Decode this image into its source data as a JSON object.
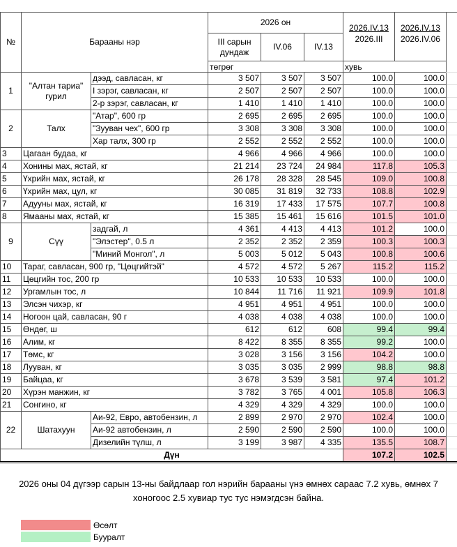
{
  "header": {
    "no": "№",
    "name": "Барааны нэр",
    "year": "2026 он",
    "col_iii": "III сарын дундаж",
    "col_iv06": "IV.06",
    "col_iv13": "IV.13",
    "pct1_top": "2026.IV.13",
    "pct1_bottom": "2026.III",
    "pct2_top": "2026.IV.13",
    "pct2_bottom": "2026.IV.06",
    "unit_price": "төгрөг",
    "unit_pct": "хувь"
  },
  "groups": [
    {
      "no": "1",
      "name": "\"Алтан тариа\" гурил",
      "items": [
        {
          "name": "дээд, савласан, кг",
          "values": [
            "3 507",
            "3 507",
            "3 507"
          ],
          "pct": [
            "100.0",
            "100.0"
          ]
        },
        {
          "name": "I зэрэг, савласан, кг",
          "values": [
            "2 507",
            "2 507",
            "2 507"
          ],
          "pct": [
            "100.0",
            "100.0"
          ]
        },
        {
          "name": "2-р зэрэг, савласан, кг",
          "values": [
            "1 410",
            "1 410",
            "1 410"
          ],
          "pct": [
            "100.0",
            "100.0"
          ]
        }
      ]
    },
    {
      "no": "2",
      "name": "Талх",
      "items": [
        {
          "name": "\"Атар\", 600 гр",
          "values": [
            "2 695",
            "2 695",
            "2 695"
          ],
          "pct": [
            "100.0",
            "100.0"
          ]
        },
        {
          "name": "\"Зууван чех\", 600 гр",
          "values": [
            "3 308",
            "3 308",
            "3 308"
          ],
          "pct": [
            "100.0",
            "100.0"
          ]
        },
        {
          "name": "Хар талх, 300 гр",
          "values": [
            "2 552",
            "2 552",
            "2 552"
          ],
          "pct": [
            "100.0",
            "100.0"
          ]
        }
      ]
    },
    {
      "no": "3",
      "name": "Цагаан будаа, кг",
      "items": [
        {
          "values": [
            "4 966",
            "4 966",
            "4 966"
          ],
          "pct": [
            "100.0",
            "100.0"
          ]
        }
      ]
    },
    {
      "no": "4",
      "name": "Хонины мах, ястай, кг",
      "items": [
        {
          "values": [
            "21 214",
            "23 724",
            "24 984"
          ],
          "pct": [
            "117.8",
            "105.3"
          ]
        }
      ]
    },
    {
      "no": "5",
      "name": "Үхрийн мах, ястай, кг",
      "items": [
        {
          "values": [
            "26 178",
            "28 328",
            "28 545"
          ],
          "pct": [
            "109.0",
            "100.8"
          ]
        }
      ]
    },
    {
      "no": "6",
      "name": "Үхрийн мах, цул, кг",
      "items": [
        {
          "values": [
            "30 085",
            "31 819",
            "32 733"
          ],
          "pct": [
            "108.8",
            "102.9"
          ]
        }
      ]
    },
    {
      "no": "7",
      "name": "Адууны мах, ястай, кг",
      "items": [
        {
          "values": [
            "16 319",
            "17 433",
            "17 575"
          ],
          "pct": [
            "107.7",
            "100.8"
          ]
        }
      ]
    },
    {
      "no": "8",
      "name": "Ямааны мах, ястай, кг",
      "items": [
        {
          "values": [
            "15 385",
            "15 461",
            "15 616"
          ],
          "pct": [
            "101.5",
            "101.0"
          ]
        }
      ]
    },
    {
      "no": "9",
      "name": "Сүү",
      "items": [
        {
          "name": "задгай, л",
          "values": [
            "4 361",
            "4 413",
            "4 413"
          ],
          "pct": [
            "101.2",
            "100.0"
          ]
        },
        {
          "name": "\"Элэстер\", 0.5 л",
          "values": [
            "2 352",
            "2 352",
            "2 359"
          ],
          "pct": [
            "100.3",
            "100.3"
          ]
        },
        {
          "name": "\"Миний Монгол\", л",
          "values": [
            "5 003",
            "5 012",
            "5 043"
          ],
          "pct": [
            "100.8",
            "100.6"
          ]
        }
      ]
    },
    {
      "no": "10",
      "name": "Тараг, савласан, 900 гр, \"Цөцгийтэй\"",
      "items": [
        {
          "values": [
            "4 572",
            "4 572",
            "5 267"
          ],
          "pct": [
            "115.2",
            "115.2"
          ]
        }
      ]
    },
    {
      "no": "11",
      "name": "Цөцгийн тос, 200 гр",
      "items": [
        {
          "values": [
            "10 533",
            "10 533",
            "10 533"
          ],
          "pct": [
            "100.0",
            "100.0"
          ]
        }
      ]
    },
    {
      "no": "12",
      "name": "Ургамлын тос, л",
      "items": [
        {
          "values": [
            "10 844",
            "11 716",
            "11 921"
          ],
          "pct": [
            "109.9",
            "101.8"
          ]
        }
      ]
    },
    {
      "no": "13",
      "name": "Элсэн чихэр, кг",
      "items": [
        {
          "values": [
            "4 951",
            "4 951",
            "4 951"
          ],
          "pct": [
            "100.0",
            "100.0"
          ]
        }
      ]
    },
    {
      "no": "14",
      "name": "Ногоон цай, савласан, 90 г",
      "items": [
        {
          "values": [
            "4 038",
            "4 038",
            "4 038"
          ],
          "pct": [
            "100.0",
            "100.0"
          ]
        }
      ]
    },
    {
      "no": "15",
      "name": "Өндөг, ш",
      "items": [
        {
          "values": [
            "612",
            "612",
            "608"
          ],
          "pct": [
            "99.4",
            "99.4"
          ]
        }
      ]
    },
    {
      "no": "16",
      "name": "Алим, кг",
      "items": [
        {
          "values": [
            "8 422",
            "8 355",
            "8 355"
          ],
          "pct": [
            "99.2",
            "100.0"
          ]
        }
      ]
    },
    {
      "no": "17",
      "name": "Төмс, кг",
      "items": [
        {
          "values": [
            "3 028",
            "3 156",
            "3 156"
          ],
          "pct": [
            "104.2",
            "100.0"
          ]
        }
      ]
    },
    {
      "no": "18",
      "name": "Лууван, кг",
      "items": [
        {
          "values": [
            "3 035",
            "3 035",
            "2 999"
          ],
          "pct": [
            "98.8",
            "98.8"
          ]
        }
      ]
    },
    {
      "no": "19",
      "name": "Байцаа, кг",
      "items": [
        {
          "values": [
            "3 678",
            "3 539",
            "3 581"
          ],
          "pct": [
            "97.4",
            "101.2"
          ]
        }
      ]
    },
    {
      "no": "20",
      "name": "Хүрэн манжин, кг",
      "items": [
        {
          "values": [
            "3 782",
            "3 765",
            "4 001"
          ],
          "pct": [
            "105.8",
            "106.3"
          ]
        }
      ]
    },
    {
      "no": "21",
      "name": "Сонгино, кг",
      "items": [
        {
          "values": [
            "4 329",
            "4 329",
            "4 329"
          ],
          "pct": [
            "100.0",
            "100.0"
          ]
        }
      ]
    },
    {
      "no": "22",
      "name": "Шатахуун",
      "items": [
        {
          "name": "Аи-92, Евро, автобензин, л",
          "values": [
            "2 899",
            "2 970",
            "2 970"
          ],
          "pct": [
            "102.4",
            "100.0"
          ]
        },
        {
          "name": "Аи-92 автобензин, л",
          "values": [
            "2 590",
            "2 590",
            "2 590"
          ],
          "pct": [
            "100.0",
            "100.0"
          ]
        },
        {
          "name": "Дизелийн түлш, л",
          "values": [
            "3 199",
            "3 987",
            "4 335"
          ],
          "pct": [
            "135.5",
            "108.7"
          ]
        }
      ]
    }
  ],
  "total": {
    "label": "Дүн",
    "pct": [
      "107.2",
      "102.5"
    ]
  },
  "note": "2026 оны 04 дүгээр сарын 13-ны байдлаар гол нэрийн барааны үнэ өмнөх сараас 7.2 хувь, өмнөх 7 хоногоос 2.5 хувиар тус тус нэмэгдсэн байна.",
  "cell_colors": {
    "increase": "#ffc7ce",
    "decrease": "#c6efce"
  },
  "legend": [
    {
      "label": "Өсөлт",
      "color": "#f28b8b"
    },
    {
      "label": "Бууралт",
      "color": "#b4f0c4"
    }
  ]
}
